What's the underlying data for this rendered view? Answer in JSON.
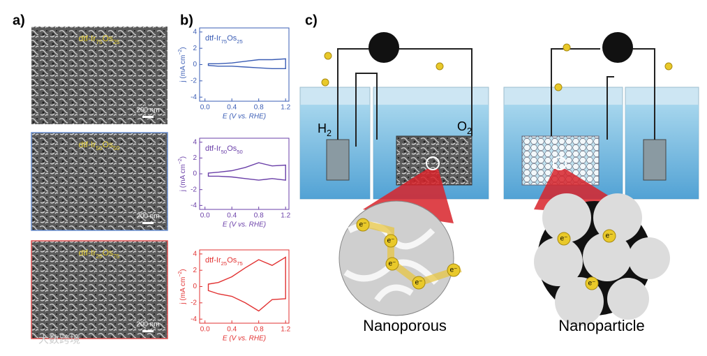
{
  "panel_labels": [
    "a)",
    "b)",
    "c)"
  ],
  "micrographs": [
    {
      "label_parts": [
        "dtf-Ir",
        "75",
        "Os",
        "25"
      ],
      "scale": "200 nm"
    },
    {
      "label_parts": [
        "dtf-Ir",
        "50",
        "Os",
        "50"
      ],
      "scale": "200 nm"
    },
    {
      "label_parts": [
        "dtf-Ir",
        "25",
        "Os",
        "75"
      ],
      "scale": "200 nm"
    }
  ],
  "chart_data": [
    {
      "type": "line",
      "label_parts": [
        "dtf-Ir",
        "75",
        "Os",
        "25"
      ],
      "y_label_parts": [
        "j",
        " (mA cm",
        "−2",
        ")"
      ],
      "x_label": "E (V vs. RHE)",
      "xlim": [
        -0.08,
        1.25
      ],
      "xticks": [
        {
          "value": 0,
          "label": "0.0"
        },
        0.4,
        0.8,
        1.2
      ],
      "ylim": [
        -4.5,
        4.5
      ],
      "yticks": [
        -4,
        -2,
        0,
        2,
        4
      ],
      "series": [
        {
          "color": "#3a5cb4",
          "x": [
            0.05,
            0.2,
            0.4,
            0.6,
            0.8,
            1.0,
            1.2,
            1.2,
            1.0,
            0.8,
            0.6,
            0.4,
            0.2,
            0.05
          ],
          "values": [
            0.1,
            0.1,
            0.2,
            0.4,
            0.6,
            0.6,
            0.7,
            -0.5,
            -0.5,
            -0.4,
            -0.3,
            -0.2,
            -0.2,
            -0.1
          ]
        }
      ]
    },
    {
      "type": "line",
      "label_parts": [
        "dtf-Ir",
        "50",
        "Os",
        "50"
      ],
      "y_label_parts": [
        "j",
        " (mA cm",
        "−2",
        ")"
      ],
      "x_label": "E (V vs. RHE)",
      "xlim": [
        -0.08,
        1.25
      ],
      "xticks": [
        {
          "value": 0,
          "label": "0.0"
        },
        0.4,
        0.8,
        1.2
      ],
      "ylim": [
        -4.5,
        4.5
      ],
      "yticks": [
        -4,
        -2,
        0,
        2,
        4
      ],
      "series": [
        {
          "color": "#6a3fa8",
          "x": [
            0.05,
            0.2,
            0.4,
            0.6,
            0.8,
            1.0,
            1.2,
            1.2,
            1.0,
            0.8,
            0.6,
            0.4,
            0.2,
            0.05
          ],
          "values": [
            0.1,
            0.2,
            0.4,
            0.8,
            1.4,
            1.0,
            1.1,
            -0.8,
            -0.6,
            -0.8,
            -0.6,
            -0.4,
            -0.3,
            -0.3
          ]
        }
      ]
    },
    {
      "type": "line",
      "label_parts": [
        "dtf-Ir",
        "25",
        "Os",
        "75"
      ],
      "y_label_parts": [
        "j",
        " (mA cm",
        "−2",
        ")"
      ],
      "x_label": "E (V vs. RHE)",
      "xlim": [
        -0.08,
        1.25
      ],
      "xticks": [
        {
          "value": 0,
          "label": "0.0"
        },
        0.4,
        0.8,
        1.2
      ],
      "ylim": [
        -4.5,
        4.5
      ],
      "yticks": [
        -4,
        -2,
        0,
        2,
        4
      ],
      "series": [
        {
          "color": "#e23232",
          "x": [
            0.05,
            0.2,
            0.4,
            0.6,
            0.8,
            1.0,
            1.2,
            1.2,
            1.0,
            0.8,
            0.6,
            0.4,
            0.2,
            0.05
          ],
          "values": [
            0.3,
            0.5,
            1.2,
            2.3,
            3.3,
            2.6,
            3.6,
            -1.5,
            -1.6,
            -3.0,
            -2.0,
            -1.2,
            -0.9,
            -0.5
          ]
        }
      ]
    }
  ],
  "schematic": {
    "h2_parts": [
      "H",
      "2"
    ],
    "o2_parts": [
      "O",
      "2"
    ],
    "electron": "e⁻",
    "captions": [
      "Nanoporous",
      "Nanoparticle"
    ]
  },
  "watermark": "大数跨境"
}
